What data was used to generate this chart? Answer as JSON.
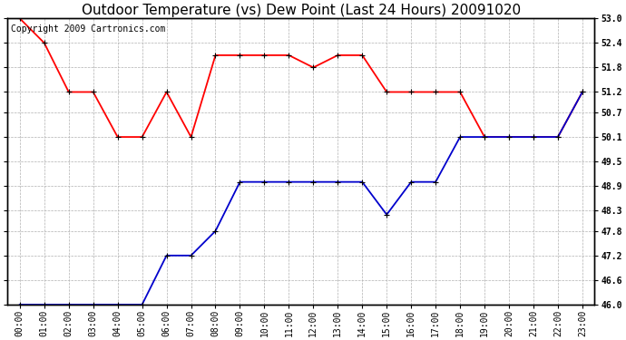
{
  "title": "Outdoor Temperature (vs) Dew Point (Last 24 Hours) 20091020",
  "copyright_text": "Copyright 2009 Cartronics.com",
  "x_labels": [
    "00:00",
    "01:00",
    "02:00",
    "03:00",
    "04:00",
    "05:00",
    "06:00",
    "07:00",
    "08:00",
    "09:00",
    "10:00",
    "11:00",
    "12:00",
    "13:00",
    "14:00",
    "15:00",
    "16:00",
    "17:00",
    "18:00",
    "19:00",
    "20:00",
    "21:00",
    "22:00",
    "23:00"
  ],
  "temp_values": [
    53.0,
    52.4,
    51.2,
    51.2,
    50.1,
    50.1,
    51.2,
    50.1,
    52.1,
    52.1,
    52.1,
    52.1,
    51.8,
    52.1,
    52.1,
    51.2,
    51.2,
    51.2,
    51.2,
    50.1,
    50.1,
    50.1,
    50.1,
    51.2
  ],
  "dew_values": [
    46.0,
    46.0,
    46.0,
    46.0,
    46.0,
    46.0,
    47.2,
    47.2,
    47.8,
    49.0,
    49.0,
    49.0,
    49.0,
    49.0,
    49.0,
    48.2,
    49.0,
    49.0,
    50.1,
    50.1,
    50.1,
    50.1,
    50.1,
    51.2
  ],
  "temp_color": "#ff0000",
  "dew_color": "#0000cc",
  "ylim_min": 46.0,
  "ylim_max": 53.0,
  "yticks": [
    46.0,
    46.6,
    47.2,
    47.8,
    48.3,
    48.9,
    49.5,
    50.1,
    50.7,
    51.2,
    51.8,
    52.4,
    53.0
  ],
  "background_color": "#ffffff",
  "plot_bg_color": "#ffffff",
  "grid_color": "#b0b0b0",
  "title_fontsize": 11,
  "tick_fontsize": 7,
  "copyright_fontsize": 7
}
